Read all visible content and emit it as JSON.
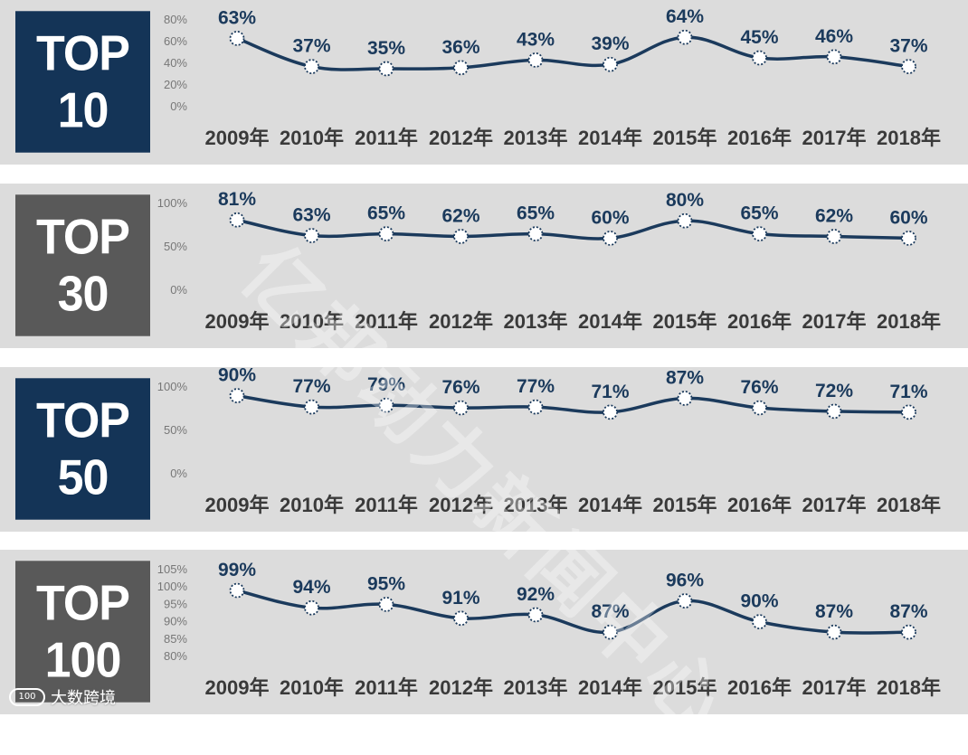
{
  "colors": {
    "line": "#1b3a5c",
    "label": "#1b3a5c",
    "year": "#3a3a3a",
    "tick": "#777777",
    "badge_dark": "#143457",
    "badge_gray": "#595959",
    "panel_bg": "#dcdcdc"
  },
  "watermark": "亿邦动力新闻中心",
  "logo": {
    "mark": "100",
    "text": "大数跨境"
  },
  "chart_data": [
    {
      "type": "line",
      "title_lines": [
        "TOP",
        "10"
      ],
      "categories": [
        "2009年",
        "2010年",
        "2011年",
        "2012年",
        "2013年",
        "2014年",
        "2015年",
        "2016年",
        "2017年",
        "2018年"
      ],
      "values": [
        63,
        37,
        35,
        36,
        43,
        39,
        64,
        45,
        46,
        37
      ],
      "labels": [
        "63%",
        "37%",
        "35%",
        "36%",
        "43%",
        "39%",
        "64%",
        "45%",
        "46%",
        "37%"
      ],
      "yticks": [
        {
          "v": 80,
          "t": "80%"
        },
        {
          "v": 60,
          "t": "60%"
        },
        {
          "v": 40,
          "t": "40%"
        },
        {
          "v": 20,
          "t": "20%"
        },
        {
          "v": 0,
          "t": "0%"
        }
      ],
      "ylim": [
        0,
        80
      ]
    },
    {
      "type": "line",
      "title_lines": [
        "TOP",
        "30"
      ],
      "categories": [
        "2009年",
        "2010年",
        "2011年",
        "2012年",
        "2013年",
        "2014年",
        "2015年",
        "2016年",
        "2017年",
        "2018年"
      ],
      "values": [
        81,
        63,
        65,
        62,
        65,
        60,
        80,
        65,
        62,
        60
      ],
      "labels": [
        "81%",
        "63%",
        "65%",
        "62%",
        "65%",
        "60%",
        "80%",
        "65%",
        "62%",
        "60%"
      ],
      "yticks": [
        {
          "v": 100,
          "t": "100%"
        },
        {
          "v": 50,
          "t": "50%"
        },
        {
          "v": 0,
          "t": "0%"
        }
      ],
      "ylim": [
        0,
        100
      ]
    },
    {
      "type": "line",
      "title_lines": [
        "TOP",
        "50"
      ],
      "categories": [
        "2009年",
        "2010年",
        "2011年",
        "2012年",
        "2013年",
        "2014年",
        "2015年",
        "2016年",
        "2017年",
        "2018年"
      ],
      "values": [
        90,
        77,
        79,
        76,
        77,
        71,
        87,
        76,
        72,
        71
      ],
      "labels": [
        "90%",
        "77%",
        "79%",
        "76%",
        "77%",
        "71%",
        "87%",
        "76%",
        "72%",
        "71%"
      ],
      "yticks": [
        {
          "v": 100,
          "t": "100%"
        },
        {
          "v": 50,
          "t": "50%"
        },
        {
          "v": 0,
          "t": "0%"
        }
      ],
      "ylim": [
        0,
        100
      ]
    },
    {
      "type": "line",
      "title_lines": [
        "TOP",
        "100"
      ],
      "categories": [
        "2009年",
        "2010年",
        "2011年",
        "2012年",
        "2013年",
        "2014年",
        "2015年",
        "2016年",
        "2017年",
        "2018年"
      ],
      "values": [
        99,
        94,
        95,
        91,
        92,
        87,
        96,
        90,
        87,
        87
      ],
      "labels": [
        "99%",
        "94%",
        "95%",
        "91%",
        "92%",
        "87%",
        "96%",
        "90%",
        "87%",
        "87%"
      ],
      "yticks": [
        {
          "v": 105,
          "t": "105%"
        },
        {
          "v": 100,
          "t": "100%"
        },
        {
          "v": 95,
          "t": "95%"
        },
        {
          "v": 90,
          "t": "90%"
        },
        {
          "v": 85,
          "t": "85%"
        },
        {
          "v": 80,
          "t": "80%"
        }
      ],
      "ylim": [
        80,
        105
      ]
    }
  ]
}
